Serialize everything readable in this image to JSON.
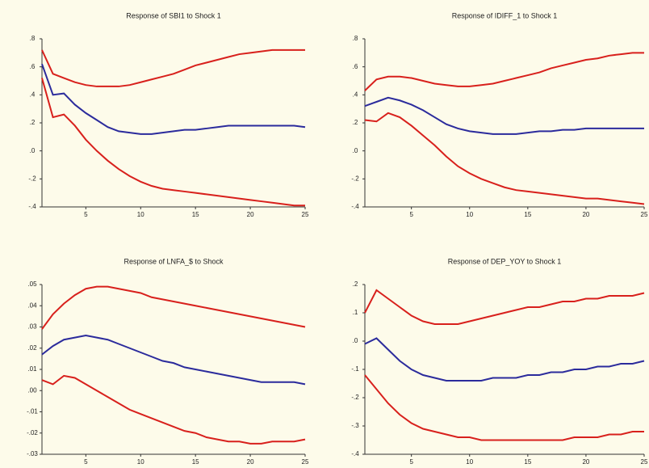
{
  "chart_data": [
    {
      "type": "line",
      "title": "Response of SBI1 to Shock 1",
      "x": [
        1,
        2,
        3,
        4,
        5,
        6,
        7,
        8,
        9,
        10,
        11,
        12,
        13,
        14,
        15,
        16,
        17,
        18,
        19,
        20,
        21,
        22,
        23,
        24,
        25
      ],
      "xlim": [
        1,
        25
      ],
      "xticks": [
        5,
        10,
        15,
        20,
        25
      ],
      "ylim": [
        -0.4,
        0.8
      ],
      "yticks": [
        {
          "value": 0.8,
          "label": ".8"
        },
        {
          "value": 0.6,
          "label": ".6"
        },
        {
          "value": 0.4,
          "label": ".4"
        },
        {
          "value": 0.2,
          "label": ".2"
        },
        {
          "value": 0,
          "label": ".0"
        },
        {
          "value": -0.2,
          "label": "-.2"
        },
        {
          "value": -0.4,
          "label": "-.4"
        }
      ],
      "series": [
        {
          "color": "#d8201c",
          "values": [
            0.72,
            0.55,
            0.52,
            0.49,
            0.47,
            0.46,
            0.46,
            0.46,
            0.47,
            0.49,
            0.51,
            0.53,
            0.55,
            0.58,
            0.61,
            0.63,
            0.65,
            0.67,
            0.69,
            0.7,
            0.71,
            0.72,
            0.72,
            0.72,
            0.72
          ]
        },
        {
          "color": "#2b2b9c",
          "values": [
            0.62,
            0.4,
            0.41,
            0.33,
            0.27,
            0.22,
            0.17,
            0.14,
            0.13,
            0.12,
            0.12,
            0.13,
            0.14,
            0.15,
            0.15,
            0.16,
            0.17,
            0.18,
            0.18,
            0.18,
            0.18,
            0.18,
            0.18,
            0.18,
            0.17
          ]
        },
        {
          "color": "#d8201c",
          "values": [
            0.52,
            0.24,
            0.26,
            0.18,
            0.08,
            0.0,
            -0.07,
            -0.13,
            -0.18,
            -0.22,
            -0.25,
            -0.27,
            -0.28,
            -0.29,
            -0.3,
            -0.31,
            -0.32,
            -0.33,
            -0.34,
            -0.35,
            -0.36,
            -0.37,
            -0.38,
            -0.39,
            -0.39
          ]
        }
      ]
    },
    {
      "type": "line",
      "title": "Response of IDIFF_1 to Shock 1",
      "x": [
        1,
        2,
        3,
        4,
        5,
        6,
        7,
        8,
        9,
        10,
        11,
        12,
        13,
        14,
        15,
        16,
        17,
        18,
        19,
        20,
        21,
        22,
        23,
        24,
        25
      ],
      "xlim": [
        1,
        25
      ],
      "xticks": [
        5,
        10,
        15,
        20,
        25
      ],
      "ylim": [
        -0.4,
        0.8
      ],
      "yticks": [
        {
          "value": 0.8,
          "label": ".8"
        },
        {
          "value": 0.6,
          "label": ".6"
        },
        {
          "value": 0.4,
          "label": ".4"
        },
        {
          "value": 0.2,
          "label": ".2"
        },
        {
          "value": 0,
          "label": ".0"
        },
        {
          "value": -0.2,
          "label": "-.2"
        },
        {
          "value": -0.4,
          "label": "-.4"
        }
      ],
      "series": [
        {
          "color": "#d8201c",
          "values": [
            0.43,
            0.51,
            0.53,
            0.53,
            0.52,
            0.5,
            0.48,
            0.47,
            0.46,
            0.46,
            0.47,
            0.48,
            0.5,
            0.52,
            0.54,
            0.56,
            0.59,
            0.61,
            0.63,
            0.65,
            0.66,
            0.68,
            0.69,
            0.7,
            0.7
          ]
        },
        {
          "color": "#2b2b9c",
          "values": [
            0.32,
            0.35,
            0.38,
            0.36,
            0.33,
            0.29,
            0.24,
            0.19,
            0.16,
            0.14,
            0.13,
            0.12,
            0.12,
            0.12,
            0.13,
            0.14,
            0.14,
            0.15,
            0.15,
            0.16,
            0.16,
            0.16,
            0.16,
            0.16,
            0.16
          ]
        },
        {
          "color": "#d8201c",
          "values": [
            0.22,
            0.21,
            0.27,
            0.24,
            0.18,
            0.11,
            0.04,
            -0.04,
            -0.11,
            -0.16,
            -0.2,
            -0.23,
            -0.26,
            -0.28,
            -0.29,
            -0.3,
            -0.31,
            -0.32,
            -0.33,
            -0.34,
            -0.34,
            -0.35,
            -0.36,
            -0.37,
            -0.38
          ]
        }
      ]
    },
    {
      "type": "line",
      "title": "Response of LNFA_$ to Shock",
      "x": [
        1,
        2,
        3,
        4,
        5,
        6,
        7,
        8,
        9,
        10,
        11,
        12,
        13,
        14,
        15,
        16,
        17,
        18,
        19,
        20,
        21,
        22,
        23,
        24,
        25
      ],
      "xlim": [
        1,
        25
      ],
      "xticks": [
        5,
        10,
        15,
        20,
        25
      ],
      "ylim": [
        -0.03,
        0.05
      ],
      "yticks": [
        {
          "value": 0.05,
          "label": ".05"
        },
        {
          "value": 0.04,
          "label": ".04"
        },
        {
          "value": 0.03,
          "label": ".03"
        },
        {
          "value": 0.02,
          "label": ".02"
        },
        {
          "value": 0.01,
          "label": ".01"
        },
        {
          "value": 0,
          "label": ".00"
        },
        {
          "value": -0.01,
          "label": "-.01"
        },
        {
          "value": -0.02,
          "label": "-.02"
        },
        {
          "value": -0.03,
          "label": "-.03"
        }
      ],
      "series": [
        {
          "color": "#d8201c",
          "values": [
            0.029,
            0.036,
            0.041,
            0.045,
            0.048,
            0.049,
            0.049,
            0.048,
            0.047,
            0.046,
            0.044,
            0.043,
            0.042,
            0.041,
            0.04,
            0.039,
            0.038,
            0.037,
            0.036,
            0.035,
            0.034,
            0.033,
            0.032,
            0.031,
            0.03
          ]
        },
        {
          "color": "#2b2b9c",
          "values": [
            0.017,
            0.021,
            0.024,
            0.025,
            0.026,
            0.025,
            0.024,
            0.022,
            0.02,
            0.018,
            0.016,
            0.014,
            0.013,
            0.011,
            0.01,
            0.009,
            0.008,
            0.007,
            0.006,
            0.005,
            0.004,
            0.004,
            0.004,
            0.004,
            0.003
          ]
        },
        {
          "color": "#d8201c",
          "values": [
            0.005,
            0.003,
            0.007,
            0.006,
            0.003,
            0.0,
            -0.003,
            -0.006,
            -0.009,
            -0.011,
            -0.013,
            -0.015,
            -0.017,
            -0.019,
            -0.02,
            -0.022,
            -0.023,
            -0.024,
            -0.024,
            -0.025,
            -0.025,
            -0.024,
            -0.024,
            -0.024,
            -0.023
          ]
        }
      ]
    },
    {
      "type": "line",
      "title": "Response of DEP_YOY to Shock 1",
      "x": [
        1,
        2,
        3,
        4,
        5,
        6,
        7,
        8,
        9,
        10,
        11,
        12,
        13,
        14,
        15,
        16,
        17,
        18,
        19,
        20,
        21,
        22,
        23,
        24,
        25
      ],
      "xlim": [
        1,
        25
      ],
      "xticks": [
        5,
        10,
        15,
        20,
        25
      ],
      "ylim": [
        -0.4,
        0.2
      ],
      "yticks": [
        {
          "value": 0.2,
          "label": ".2"
        },
        {
          "value": 0.1,
          "label": ".1"
        },
        {
          "value": 0,
          "label": ".0"
        },
        {
          "value": -0.1,
          "label": "-.1"
        },
        {
          "value": -0.2,
          "label": "-.2"
        },
        {
          "value": -0.3,
          "label": "-.3"
        },
        {
          "value": -0.4,
          "label": "-.4"
        }
      ],
      "series": [
        {
          "color": "#d8201c",
          "values": [
            0.1,
            0.18,
            0.15,
            0.12,
            0.09,
            0.07,
            0.06,
            0.06,
            0.06,
            0.07,
            0.08,
            0.09,
            0.1,
            0.11,
            0.12,
            0.12,
            0.13,
            0.14,
            0.14,
            0.15,
            0.15,
            0.16,
            0.16,
            0.16,
            0.17
          ]
        },
        {
          "color": "#2b2b9c",
          "values": [
            -0.01,
            0.01,
            -0.03,
            -0.07,
            -0.1,
            -0.12,
            -0.13,
            -0.14,
            -0.14,
            -0.14,
            -0.14,
            -0.13,
            -0.13,
            -0.13,
            -0.12,
            -0.12,
            -0.11,
            -0.11,
            -0.1,
            -0.1,
            -0.09,
            -0.09,
            -0.08,
            -0.08,
            -0.07
          ]
        },
        {
          "color": "#d8201c",
          "values": [
            -0.12,
            -0.17,
            -0.22,
            -0.26,
            -0.29,
            -0.31,
            -0.32,
            -0.33,
            -0.34,
            -0.34,
            -0.35,
            -0.35,
            -0.35,
            -0.35,
            -0.35,
            -0.35,
            -0.35,
            -0.35,
            -0.34,
            -0.34,
            -0.34,
            -0.33,
            -0.33,
            -0.32,
            -0.32
          ]
        }
      ]
    }
  ]
}
